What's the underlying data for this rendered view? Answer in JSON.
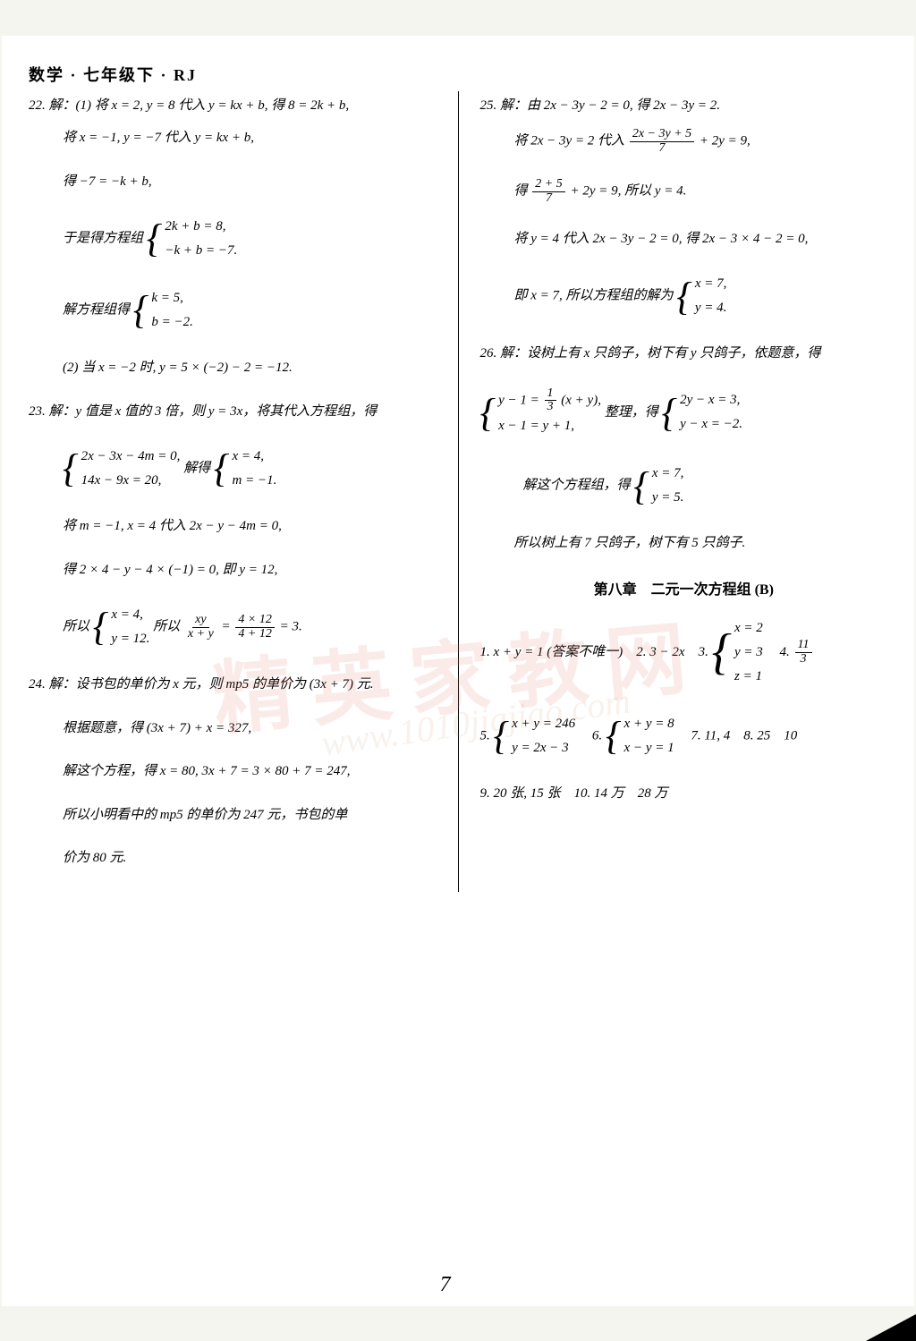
{
  "header": "数学 · 七年级下 · RJ",
  "watermark_main": "精英家教网",
  "watermark_url": "www.1010jiajiao.com",
  "pagemark": "7",
  "left": {
    "q22_open": "22. 解：(1) 将 x = 2, y = 8 代入 y = kx + b, 得 8 = 2k + b,",
    "q22_l2": "将 x = −1, y = −7 代入 y = kx + b,",
    "q22_l3": "得 −7 = −k + b,",
    "q22_sys_label": "于是得方程组",
    "q22_sys_a": "2k + b = 8,",
    "q22_sys_b": "−k + b = −7.",
    "q22_solve_label": "解方程组得",
    "q22_solve_a": "k = 5,",
    "q22_solve_b": "b = −2.",
    "q22_part2": "(2) 当 x = −2 时, y = 5 × (−2) − 2 = −12.",
    "q23_open": "23. 解：y 值是 x 值的 3 倍，则 y = 3x，将其代入方程组，得",
    "q23_sys1_a": "2x − 3x − 4m = 0,",
    "q23_sys1_b": "14x − 9x = 20,",
    "q23_mid": "解得",
    "q23_sys2_a": "x = 4,",
    "q23_sys2_b": "m = −1.",
    "q23_sub": "将 m = −1, x = 4 代入 2x − y − 4m = 0,",
    "q23_eval": "得 2 × 4 − y − 4 × (−1) = 0, 即 y = 12,",
    "q23_so_label": "所以",
    "q23_so_a": "x = 4,",
    "q23_so_b": "y = 12.",
    "q23_so_tail_pre": "所以",
    "q23_final_num1": "xy",
    "q23_final_den1": "x + y",
    "q23_final_eq": " = ",
    "q23_final_num2": "4 × 12",
    "q23_final_den2": "4 + 12",
    "q23_final_tail": " = 3.",
    "q24_open": "24. 解：设书包的单价为 x 元，则 mp5 的单价为 (3x + 7) 元.",
    "q24_eq": "根据题意，得 (3x + 7) + x = 327,",
    "q24_solve": "解这个方程，得 x = 80, 3x + 7 = 3 × 80 + 7 = 247,",
    "q24_ans1": "所以小明看中的 mp5 的单价为 247 元，书包的单",
    "q24_ans2": "价为 80 元."
  },
  "right": {
    "q25_open": "25. 解：由 2x − 3y − 2 = 0, 得 2x − 3y = 2.",
    "q25_sub_pre": "将 2x − 3y = 2 代入",
    "q25_sub_num": "2x − 3y + 5",
    "q25_sub_den": "7",
    "q25_sub_tail": " + 2y = 9,",
    "q25_eval_pre": "得",
    "q25_eval_num": "2 + 5",
    "q25_eval_den": "7",
    "q25_eval_tail": " + 2y = 9, 所以 y = 4.",
    "q25_back": "将 y = 4 代入 2x − 3y − 2 = 0, 得 2x − 3 × 4 − 2 = 0,",
    "q25_final_pre": "即 x = 7, 所以方程组的解为",
    "q25_final_a": "x = 7,",
    "q25_final_b": "y = 4.",
    "q26_open": "26. 解：设树上有 x 只鸽子，树下有 y 只鸽子，依题意，得",
    "q26_sys1_a_pre": "y − 1 = ",
    "q26_sys1_a_num": "1",
    "q26_sys1_a_den": "3",
    "q26_sys1_a_tail": " (x + y),",
    "q26_sys1_b": "x − 1 = y + 1,",
    "q26_mid": "整理，得",
    "q26_sys2_a": "2y − x = 3,",
    "q26_sys2_b": "y − x = −2.",
    "q26_solve_label": "解这个方程组，得",
    "q26_solve_a": "x = 7,",
    "q26_solve_b": "y = 5.",
    "q26_ans": "所以树上有 7 只鸽子，树下有 5 只鸽子.",
    "chapterB_title": "第八章　二元一次方程组 (B)",
    "b_line1_pre": "1. x + y = 1 (答案不唯一)　2. 3 − 2x　3.",
    "b_line1_a": "x = 2",
    "b_line1_b": "y = 3",
    "b_line1_c": "z = 1",
    "b_line1_mid": "　4. ",
    "b_line1_4num": "11",
    "b_line1_4den": "3",
    "b_line2_pre": "5.",
    "b_line2_s1a": "x + y = 246",
    "b_line2_s1b": "y = 2x − 3",
    "b_line2_mid": "　6.",
    "b_line2_s2a": "x + y = 8",
    "b_line2_s2b": "x − y = 1",
    "b_line2_tail": "　7. 11, 4　8. 25　10",
    "b_line3": "9. 20 张, 15 张　10. 14 万　28 万"
  }
}
